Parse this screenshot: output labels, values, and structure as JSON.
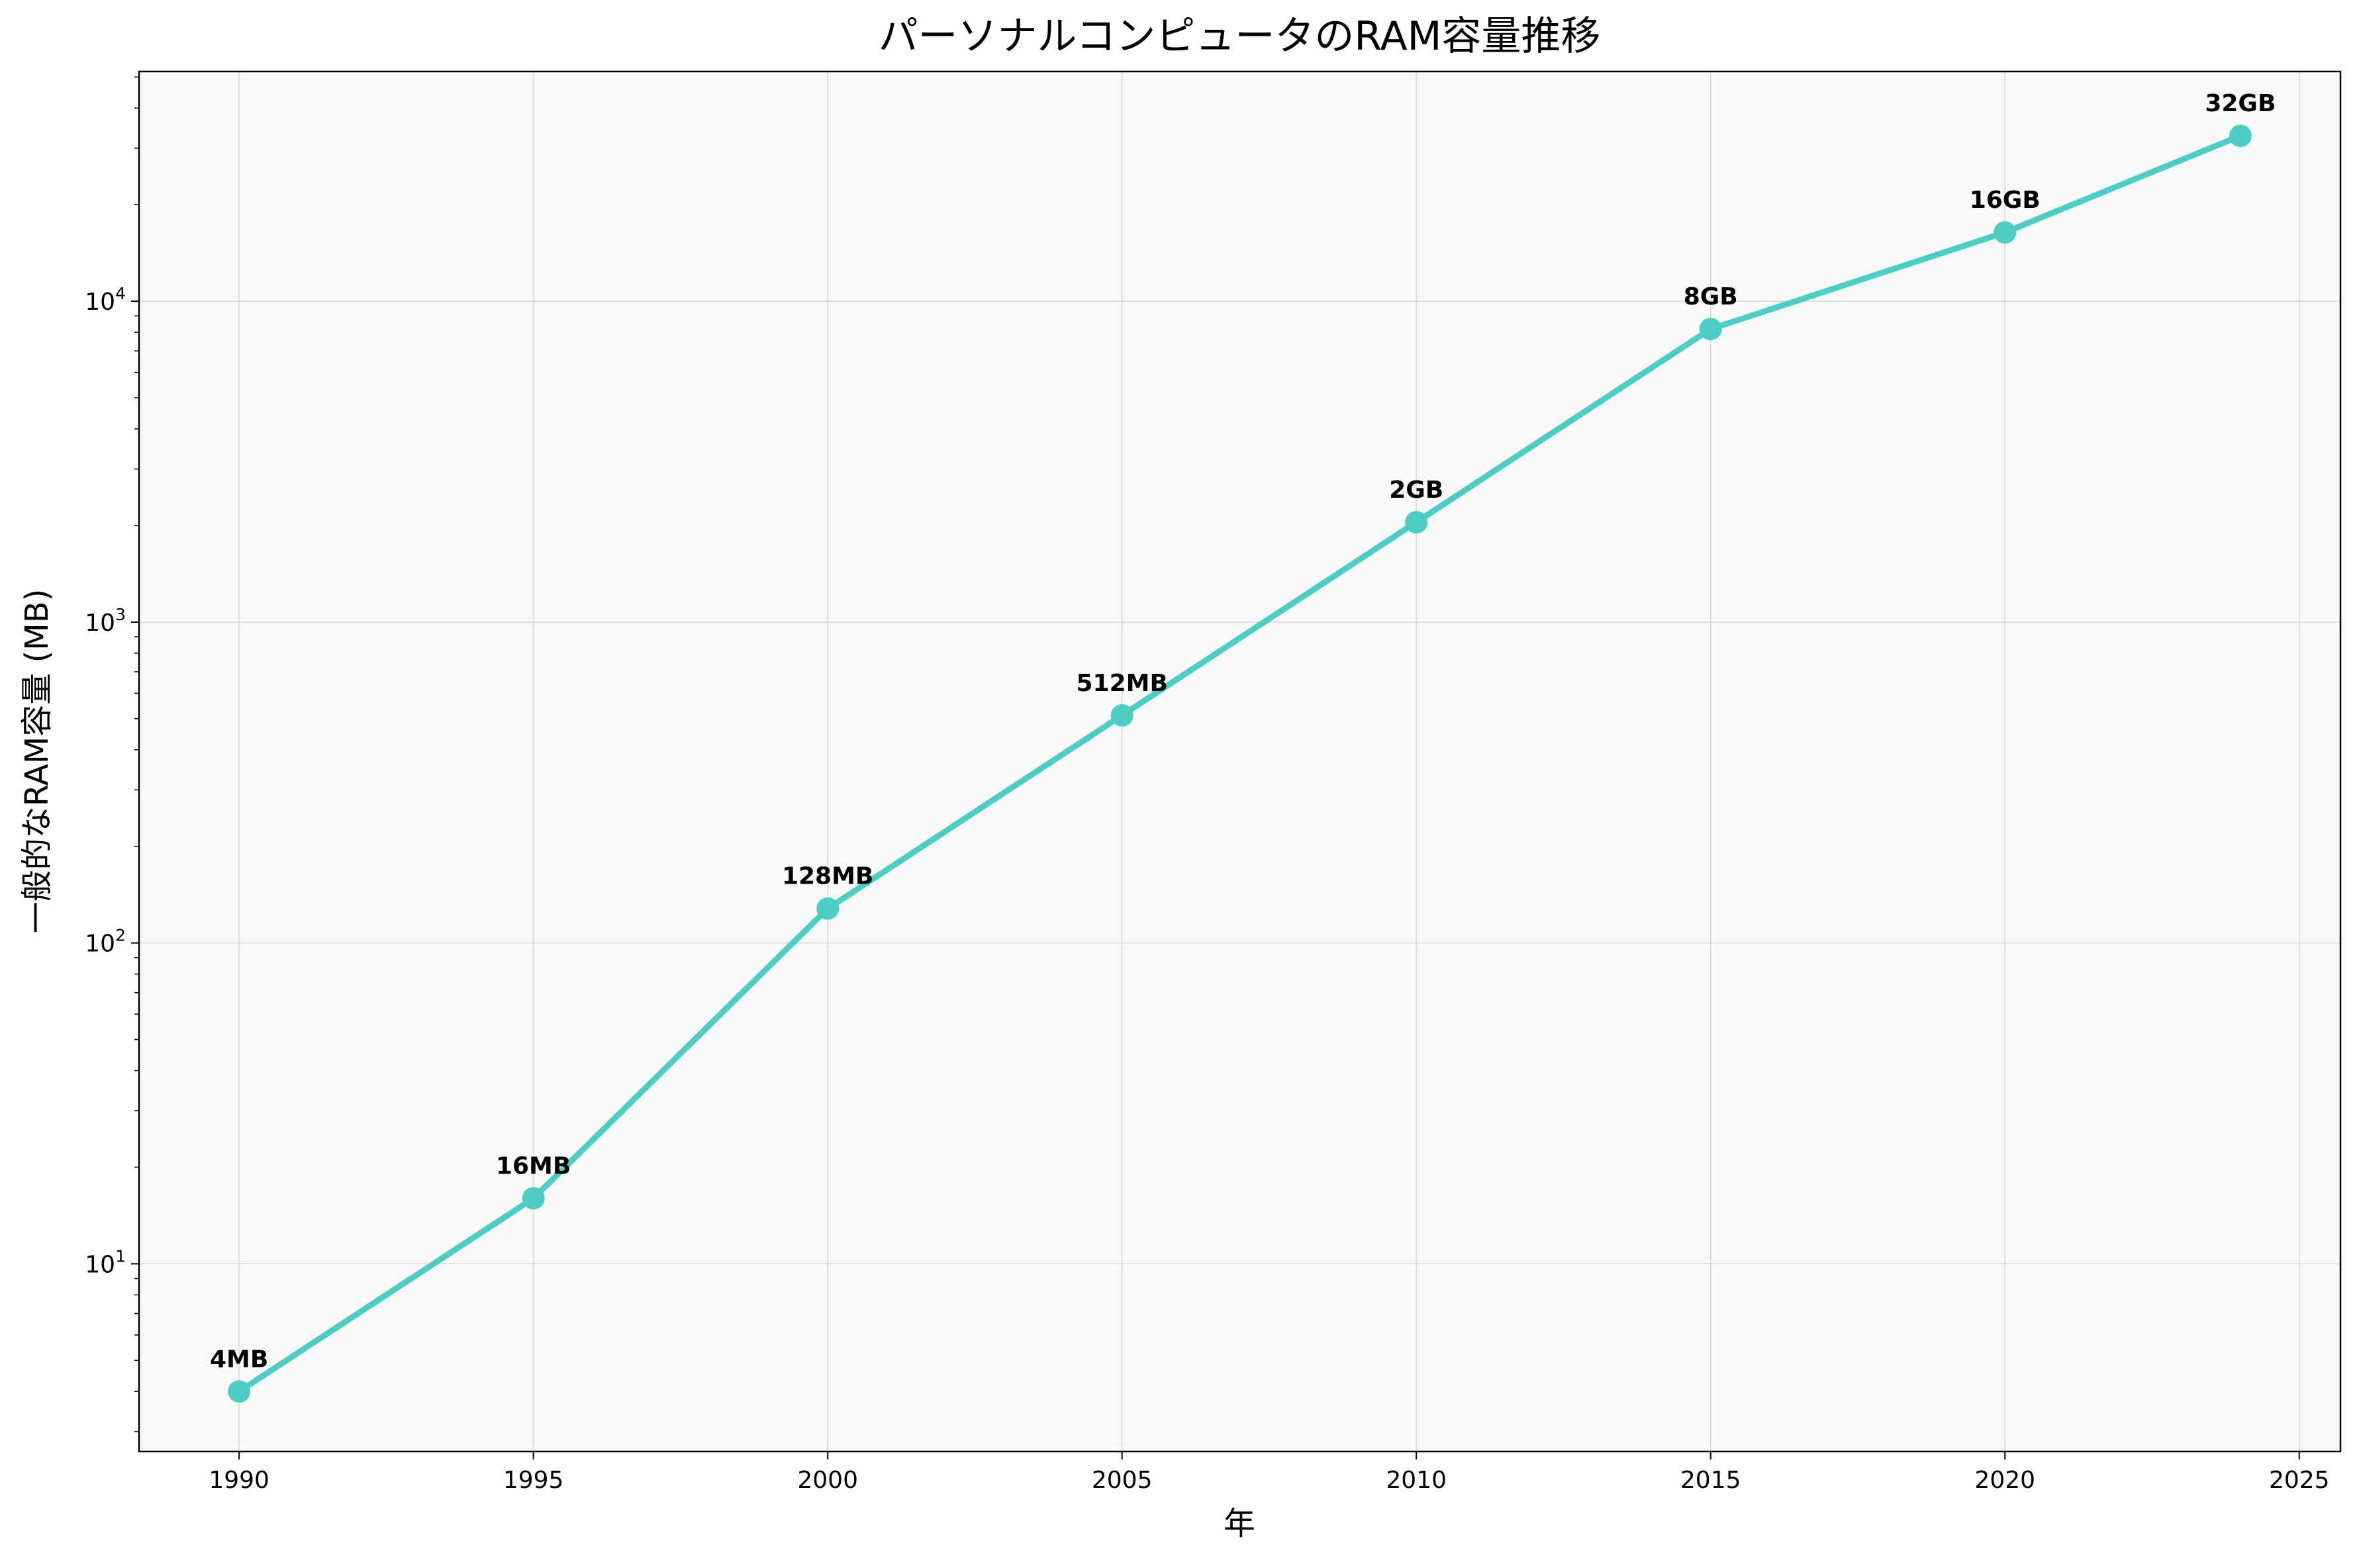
{
  "chart_data": {
    "type": "line",
    "title": "パーソナルコンピュータのRAM容量推移",
    "xlabel": "年",
    "ylabel": "一般的なRAM容量 (MB)",
    "yscale": "log",
    "xlim": [
      1988.3,
      2025.7
    ],
    "ylim": [
      2.6,
      52000
    ],
    "grid": true,
    "line_color": "#4ECDC4",
    "plot_background": "#F8F9FA",
    "x_ticks": [
      1990,
      1995,
      2000,
      2005,
      2010,
      2015,
      2020,
      2025
    ],
    "x_tick_labels": [
      "1990",
      "1995",
      "2000",
      "2005",
      "2010",
      "2015",
      "2020",
      "2025"
    ],
    "y_major_ticks": [
      {
        "value": 10,
        "base": "10",
        "exp": "1"
      },
      {
        "value": 100,
        "base": "10",
        "exp": "2"
      },
      {
        "value": 1000,
        "base": "10",
        "exp": "3"
      },
      {
        "value": 10000,
        "base": "10",
        "exp": "4"
      }
    ],
    "x": [
      1990,
      1995,
      2000,
      2005,
      2010,
      2015,
      2020,
      2024
    ],
    "values": [
      4,
      16,
      128,
      512,
      2048,
      8192,
      16384,
      32768
    ],
    "point_labels": [
      "4MB",
      "16MB",
      "128MB",
      "512MB",
      "2GB",
      "8GB",
      "16GB",
      "32GB"
    ]
  }
}
